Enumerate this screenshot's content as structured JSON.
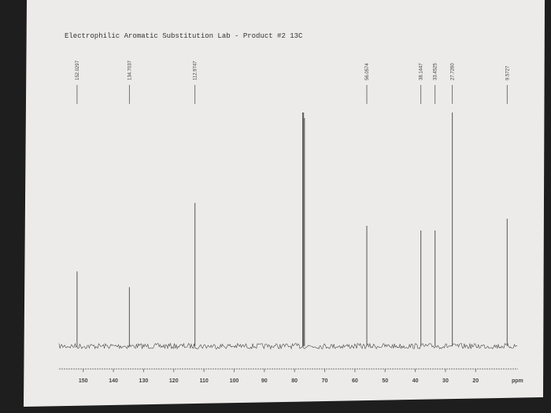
{
  "chart_data": {
    "type": "spectrum",
    "title": "Electrophilic Aromatic Substitution Lab  -  Product #2 13C",
    "x_label": "ppm",
    "xlim": [
      158,
      6
    ],
    "xticks": [
      150,
      140,
      130,
      120,
      110,
      100,
      90,
      80,
      70,
      60,
      50,
      40,
      30,
      20
    ],
    "series": [
      {
        "name": "13C",
        "color": "#555555",
        "x": [
          152.0297,
          134.7037,
          112.9747,
          77.3,
          77.0,
          76.7,
          56.0574,
          38.1447,
          33.4525,
          27.726,
          9.5727
        ],
        "x_labels": [
          "152.0297",
          "134.7037",
          "112.9747",
          null,
          null,
          null,
          "56.0574",
          "38.1447",
          "33.4525",
          "27.7260",
          "9.5727"
        ],
        "values": [
          95,
          75,
          182,
          297,
          297,
          290,
          153,
          147,
          147,
          297,
          162
        ]
      }
    ]
  }
}
